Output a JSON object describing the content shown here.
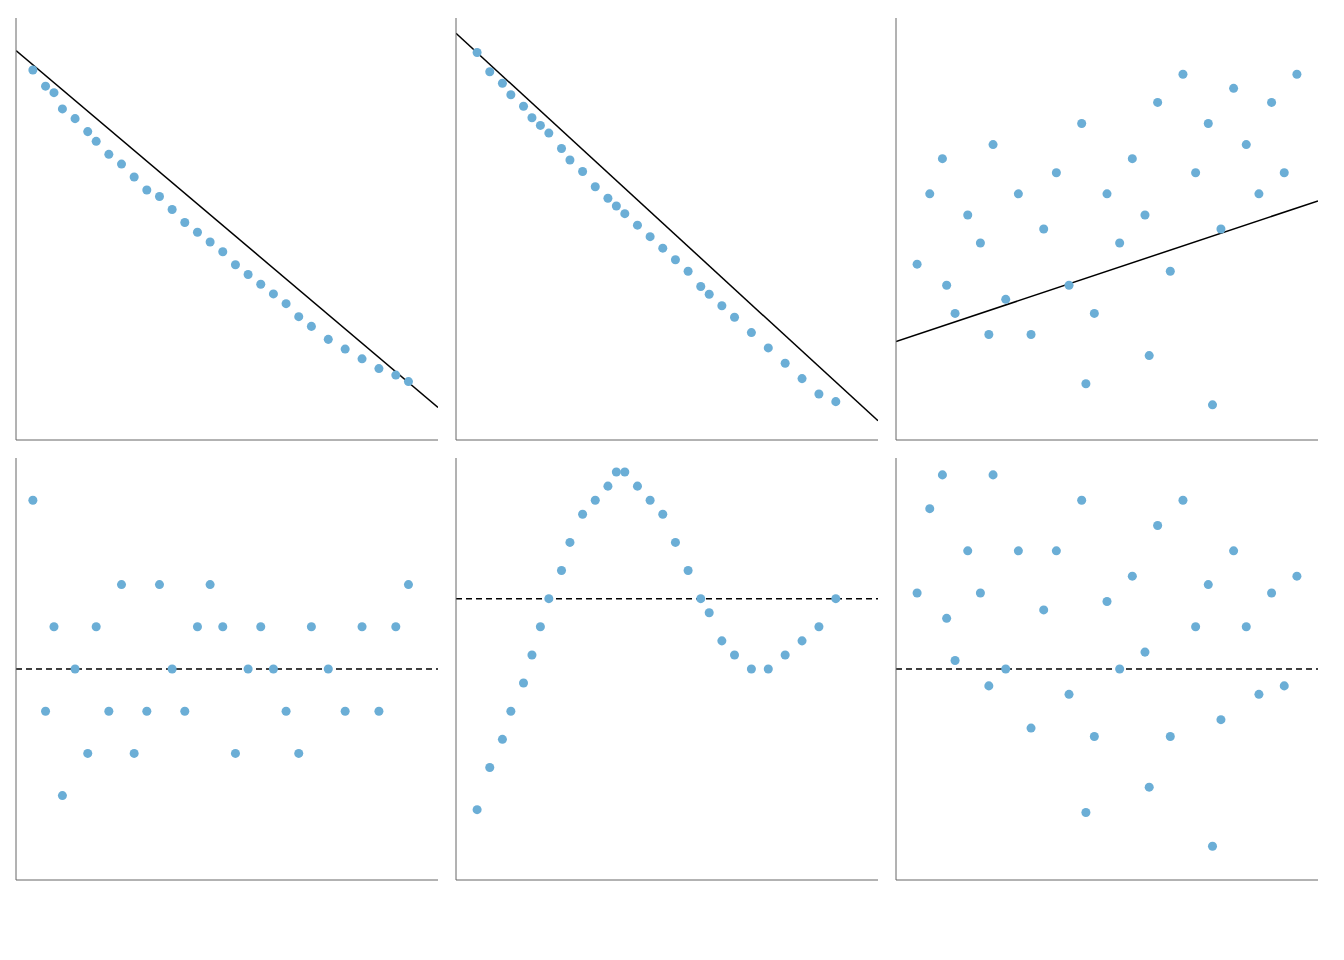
{
  "chart_data": [
    {
      "type": "scatter",
      "xlim": [
        0,
        1
      ],
      "ylim": [
        -0.2,
        1.1
      ],
      "tick_labels": false,
      "grid": false,
      "series": [
        {
          "type": "scatter",
          "color": "#6baed6",
          "x": [
            0.04,
            0.07,
            0.09,
            0.11,
            0.14,
            0.17,
            0.19,
            0.22,
            0.25,
            0.28,
            0.31,
            0.34,
            0.37,
            0.4,
            0.43,
            0.46,
            0.49,
            0.52,
            0.55,
            0.58,
            0.61,
            0.64,
            0.67,
            0.7,
            0.74,
            0.78,
            0.82,
            0.86,
            0.9,
            0.93
          ],
          "values": [
            0.94,
            0.89,
            0.87,
            0.82,
            0.79,
            0.75,
            0.72,
            0.68,
            0.65,
            0.61,
            0.57,
            0.55,
            0.51,
            0.47,
            0.44,
            0.41,
            0.38,
            0.34,
            0.31,
            0.28,
            0.25,
            0.22,
            0.18,
            0.15,
            0.11,
            0.08,
            0.05,
            0.02,
            0.0,
            -0.02
          ]
        },
        {
          "type": "line",
          "line_style": "solid",
          "color": "#000000",
          "x": [
            0.0,
            1.0
          ],
          "values": [
            1.0,
            -0.1
          ]
        }
      ]
    },
    {
      "type": "scatter",
      "xlim": [
        0,
        1
      ],
      "ylim": [
        -0.1,
        1.0
      ],
      "tick_labels": false,
      "grid": false,
      "series": [
        {
          "type": "scatter",
          "color": "#6baed6",
          "x": [
            0.05,
            0.08,
            0.11,
            0.13,
            0.16,
            0.18,
            0.2,
            0.22,
            0.25,
            0.27,
            0.3,
            0.33,
            0.36,
            0.38,
            0.4,
            0.43,
            0.46,
            0.49,
            0.52,
            0.55,
            0.58,
            0.6,
            0.63,
            0.66,
            0.7,
            0.74,
            0.78,
            0.82,
            0.86,
            0.9
          ],
          "values": [
            0.91,
            0.86,
            0.83,
            0.8,
            0.77,
            0.74,
            0.72,
            0.7,
            0.66,
            0.63,
            0.6,
            0.56,
            0.53,
            0.51,
            0.49,
            0.46,
            0.43,
            0.4,
            0.37,
            0.34,
            0.3,
            0.28,
            0.25,
            0.22,
            0.18,
            0.14,
            0.1,
            0.06,
            0.02,
            0.0
          ]
        },
        {
          "type": "line",
          "line_style": "solid",
          "color": "#000000",
          "x": [
            0.0,
            1.0
          ],
          "values": [
            0.96,
            -0.05
          ]
        }
      ]
    },
    {
      "type": "scatter",
      "xlim": [
        0,
        1
      ],
      "ylim": [
        0.2,
        0.8
      ],
      "tick_labels": false,
      "grid": false,
      "series": [
        {
          "type": "scatter",
          "color": "#6baed6",
          "x": [
            0.05,
            0.08,
            0.11,
            0.14,
            0.17,
            0.2,
            0.23,
            0.26,
            0.29,
            0.32,
            0.35,
            0.38,
            0.41,
            0.44,
            0.47,
            0.5,
            0.53,
            0.56,
            0.59,
            0.62,
            0.65,
            0.68,
            0.71,
            0.74,
            0.77,
            0.8,
            0.83,
            0.86,
            0.89,
            0.92,
            0.95,
            0.12,
            0.22,
            0.45,
            0.6,
            0.75
          ],
          "values": [
            0.45,
            0.55,
            0.6,
            0.38,
            0.52,
            0.48,
            0.62,
            0.4,
            0.55,
            0.35,
            0.5,
            0.58,
            0.42,
            0.65,
            0.38,
            0.55,
            0.48,
            0.6,
            0.52,
            0.68,
            0.44,
            0.72,
            0.58,
            0.65,
            0.5,
            0.7,
            0.62,
            0.55,
            0.68,
            0.58,
            0.72,
            0.42,
            0.35,
            0.28,
            0.32,
            0.25
          ]
        },
        {
          "type": "line",
          "line_style": "solid",
          "color": "#000000",
          "x": [
            0.0,
            1.0
          ],
          "values": [
            0.34,
            0.54
          ]
        }
      ]
    },
    {
      "type": "scatter",
      "xlim": [
        0,
        1
      ],
      "ylim": [
        -0.05,
        0.05
      ],
      "tick_labels": false,
      "grid": false,
      "series": [
        {
          "type": "scatter",
          "color": "#6baed6",
          "x": [
            0.04,
            0.07,
            0.09,
            0.11,
            0.14,
            0.17,
            0.19,
            0.22,
            0.25,
            0.28,
            0.31,
            0.34,
            0.37,
            0.4,
            0.43,
            0.46,
            0.49,
            0.52,
            0.55,
            0.58,
            0.61,
            0.64,
            0.67,
            0.7,
            0.74,
            0.78,
            0.82,
            0.86,
            0.9,
            0.93
          ],
          "values": [
            0.04,
            -0.01,
            0.01,
            -0.03,
            0.0,
            -0.02,
            0.01,
            -0.01,
            0.02,
            -0.02,
            -0.01,
            0.02,
            0.0,
            -0.01,
            0.01,
            0.02,
            0.01,
            -0.02,
            0.0,
            0.01,
            0.0,
            -0.01,
            -0.02,
            0.01,
            0.0,
            -0.01,
            0.01,
            -0.01,
            0.01,
            0.02
          ]
        },
        {
          "type": "line",
          "line_style": "dashed",
          "color": "#000000",
          "x": [
            0,
            1
          ],
          "values": [
            0,
            0
          ]
        }
      ]
    },
    {
      "type": "scatter",
      "xlim": [
        0,
        1
      ],
      "ylim": [
        -0.2,
        0.1
      ],
      "tick_labels": false,
      "grid": false,
      "series": [
        {
          "type": "scatter",
          "color": "#6baed6",
          "x": [
            0.05,
            0.08,
            0.11,
            0.13,
            0.16,
            0.18,
            0.2,
            0.22,
            0.25,
            0.27,
            0.3,
            0.33,
            0.36,
            0.38,
            0.4,
            0.43,
            0.46,
            0.49,
            0.52,
            0.55,
            0.58,
            0.6,
            0.63,
            0.66,
            0.7,
            0.74,
            0.78,
            0.82,
            0.86,
            0.9
          ],
          "values": [
            -0.15,
            -0.12,
            -0.1,
            -0.08,
            -0.06,
            -0.04,
            -0.02,
            0.0,
            0.02,
            0.04,
            0.06,
            0.07,
            0.08,
            0.09,
            0.09,
            0.08,
            0.07,
            0.06,
            0.04,
            0.02,
            0.0,
            -0.01,
            -0.03,
            -0.04,
            -0.05,
            -0.05,
            -0.04,
            -0.03,
            -0.02,
            0.0
          ]
        },
        {
          "type": "line",
          "line_style": "dashed",
          "color": "#000000",
          "x": [
            0,
            1
          ],
          "values": [
            0,
            0
          ]
        }
      ]
    },
    {
      "type": "scatter",
      "xlim": [
        0,
        1
      ],
      "ylim": [
        -0.25,
        0.25
      ],
      "tick_labels": false,
      "grid": false,
      "series": [
        {
          "type": "scatter",
          "color": "#6baed6",
          "x": [
            0.05,
            0.08,
            0.11,
            0.14,
            0.17,
            0.2,
            0.23,
            0.26,
            0.29,
            0.32,
            0.35,
            0.38,
            0.41,
            0.44,
            0.47,
            0.5,
            0.53,
            0.56,
            0.59,
            0.62,
            0.65,
            0.68,
            0.71,
            0.74,
            0.77,
            0.8,
            0.83,
            0.86,
            0.89,
            0.92,
            0.95,
            0.12,
            0.22,
            0.45,
            0.6,
            0.75
          ],
          "values": [
            0.09,
            0.19,
            0.23,
            0.01,
            0.14,
            0.09,
            0.23,
            0.0,
            0.14,
            -0.07,
            0.07,
            0.14,
            -0.03,
            0.2,
            -0.08,
            0.08,
            0.0,
            0.11,
            0.02,
            0.17,
            -0.08,
            0.2,
            0.05,
            0.1,
            -0.06,
            0.14,
            0.05,
            -0.03,
            0.09,
            -0.02,
            0.11,
            0.06,
            -0.02,
            -0.17,
            -0.14,
            -0.21
          ]
        },
        {
          "type": "line",
          "line_style": "dashed",
          "color": "#000000",
          "x": [
            0,
            1
          ],
          "values": [
            0,
            0
          ]
        }
      ]
    }
  ]
}
